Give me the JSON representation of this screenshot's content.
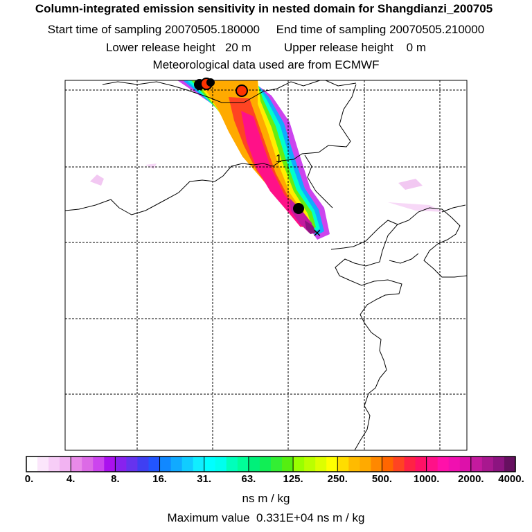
{
  "header": {
    "title": "Column-integrated emission sensitivity in nested domain for Shangdianzi_200705",
    "line2": "Start time of sampling 20070505.180000     End time of sampling 20070505.210000",
    "line3": "Lower release height   20 m          Upper release height    0 m",
    "line4": "Meteorological data used are from ECMWF"
  },
  "chart_data": {
    "type": "heatmap",
    "title": "Column-integrated emission sensitivity in nested domain for Shangdianzi_200705",
    "units": "ns m / kg",
    "max_value_text": "Maximum value  0.331E+04 ns m / kg",
    "colorbar": {
      "tick_labels": [
        "0.",
        "4.",
        "8.",
        "16.",
        "31.",
        "63.",
        "125.",
        "250.",
        "500.",
        "1000.",
        "2000.",
        "4000."
      ],
      "colors": [
        "#ffffff",
        "#fbe6fb",
        "#f7cdf7",
        "#f2b3f2",
        "#e98ae9",
        "#dc6ae6",
        "#cc44ee",
        "#aa11ee",
        "#8822ee",
        "#6633ee",
        "#3f3ff2",
        "#2255ff",
        "#1188ff",
        "#11aaff",
        "#11ccff",
        "#11eeff",
        "#00ffff",
        "#00ffee",
        "#00ffbb",
        "#00ff99",
        "#00f07a",
        "#11ee55",
        "#33ee33",
        "#55ee11",
        "#99ff00",
        "#bbff00",
        "#ddff00",
        "#ffff00",
        "#ffdd00",
        "#ffbb00",
        "#ffaa00",
        "#ff8800",
        "#ff6600",
        "#ff4422",
        "#ff2244",
        "#ff1166",
        "#ff1188",
        "#ff11aa",
        "#f010b0",
        "#dd11aa",
        "#c41a9e",
        "#a8188f",
        "#8c1480",
        "#661060"
      ]
    },
    "trajectory_label": "1",
    "release_marker": "×"
  }
}
